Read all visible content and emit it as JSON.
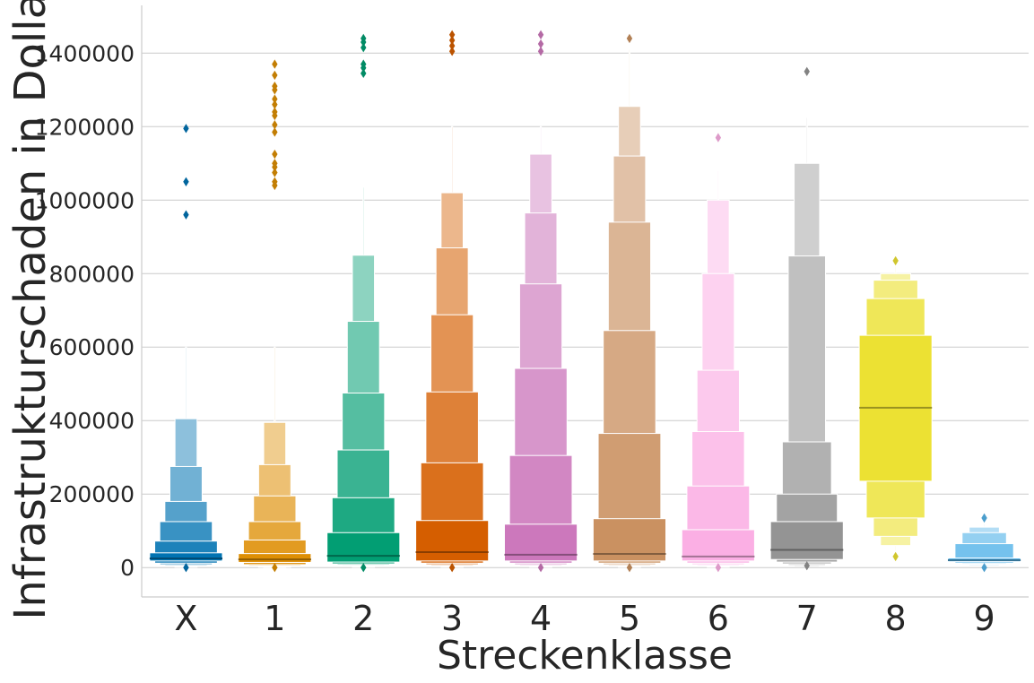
{
  "chart_data": {
    "type": "boxen",
    "xlabel": "Streckenklasse",
    "ylabel": "Infrastrukturschaden in Dollar",
    "ylim": [
      -80000,
      1530000
    ],
    "yticks": [
      "0",
      "200000",
      "400000",
      "600000",
      "800000",
      "1000000",
      "1200000",
      "1400000"
    ],
    "ytick_values": [
      0,
      200000,
      400000,
      600000,
      800000,
      1000000,
      1200000,
      1400000
    ],
    "grid": "horizontal",
    "categories": [
      "X",
      "1",
      "2",
      "3",
      "4",
      "5",
      "6",
      "7",
      "8",
      "9"
    ],
    "series": [
      {
        "label": "X",
        "color": "#0173b2",
        "median": 25000,
        "boxes": [
          [
            18000,
            40000
          ],
          [
            12000,
            72000
          ],
          [
            8000,
            125000
          ],
          [
            5000,
            180000
          ],
          [
            3000,
            275000
          ],
          [
            1000,
            405000
          ],
          [
            0,
            600000
          ]
        ],
        "outliers": [
          1195000,
          1050000,
          960000,
          0
        ]
      },
      {
        "label": "1",
        "color": "#de8f05",
        "median": 22000,
        "boxes": [
          [
            14000,
            38000
          ],
          [
            8000,
            75000
          ],
          [
            5000,
            125000
          ],
          [
            3000,
            195000
          ],
          [
            1000,
            280000
          ],
          [
            0,
            395000
          ],
          [
            0,
            600000
          ]
        ],
        "outliers": [
          1370000,
          1340000,
          1310000,
          1300000,
          1275000,
          1260000,
          1240000,
          1230000,
          1205000,
          1185000,
          1125000,
          1100000,
          1090000,
          1075000,
          1050000,
          1040000,
          0
        ]
      },
      {
        "label": "2",
        "color": "#029e73",
        "median": 32000,
        "boxes": [
          [
            15000,
            95000
          ],
          [
            10000,
            190000
          ],
          [
            7000,
            320000
          ],
          [
            5000,
            475000
          ],
          [
            3000,
            670000
          ],
          [
            1000,
            850000
          ],
          [
            0,
            1035000
          ]
        ],
        "outliers": [
          1440000,
          1430000,
          1415000,
          1370000,
          1360000,
          1345000,
          0
        ]
      },
      {
        "label": "3",
        "color": "#d55e00",
        "median": 42000,
        "boxes": [
          [
            18000,
            128000
          ],
          [
            12000,
            285000
          ],
          [
            8000,
            478000
          ],
          [
            5000,
            688000
          ],
          [
            3000,
            870000
          ],
          [
            1000,
            1020000
          ],
          [
            0,
            1200000
          ]
        ],
        "outliers": [
          1450000,
          1435000,
          1420000,
          1405000,
          0
        ]
      },
      {
        "label": "4",
        "color": "#cc78bc",
        "median": 35000,
        "boxes": [
          [
            18000,
            118000
          ],
          [
            12000,
            305000
          ],
          [
            8000,
            542000
          ],
          [
            5000,
            772000
          ],
          [
            3000,
            965000
          ],
          [
            1000,
            1125000
          ],
          [
            0,
            1200000
          ]
        ],
        "outliers": [
          1450000,
          1425000,
          1405000,
          0
        ]
      },
      {
        "label": "5",
        "color": "#ca9161",
        "median": 37000,
        "boxes": [
          [
            18000,
            133000
          ],
          [
            12000,
            365000
          ],
          [
            8000,
            645000
          ],
          [
            5000,
            940000
          ],
          [
            3000,
            1120000
          ],
          [
            1000,
            1255000
          ],
          [
            0,
            1410000
          ]
        ],
        "outliers": [
          1440000,
          0
        ]
      },
      {
        "label": "6",
        "color": "#fbafe4",
        "median": 30000,
        "boxes": [
          [
            18000,
            103000
          ],
          [
            12000,
            222000
          ],
          [
            8000,
            370000
          ],
          [
            5000,
            537000
          ],
          [
            3000,
            800000
          ],
          [
            1000,
            1000000
          ],
          [
            0,
            1080000
          ]
        ],
        "outliers": [
          1170000,
          0
        ]
      },
      {
        "label": "7",
        "color": "#949494",
        "median": 48000,
        "boxes": [
          [
            22000,
            125000
          ],
          [
            15000,
            200000
          ],
          [
            10000,
            342000
          ],
          [
            6000,
            848000
          ],
          [
            3000,
            1100000
          ],
          [
            1000,
            1225000
          ]
        ],
        "outliers": [
          1350000,
          5000
        ]
      },
      {
        "label": "8",
        "color": "#ece133",
        "median": 435000,
        "boxes": [
          [
            235000,
            632000
          ],
          [
            135000,
            732000
          ],
          [
            85000,
            782000
          ],
          [
            60000,
            800000
          ],
          [
            45000,
            820000
          ]
        ],
        "outliers": [
          835000,
          30000
        ]
      },
      {
        "label": "9",
        "color": "#56b4e9",
        "median": 20000,
        "boxes": [
          [
            16000,
            26000
          ],
          [
            12000,
            65000
          ],
          [
            9000,
            95000
          ],
          [
            6000,
            110000
          ],
          [
            3000,
            122000
          ]
        ],
        "outliers": [
          135000,
          0
        ]
      }
    ]
  }
}
